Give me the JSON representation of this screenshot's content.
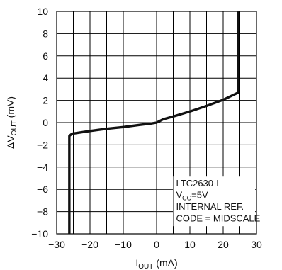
{
  "chart_data": {
    "type": "line",
    "xlabel": {
      "main": "I",
      "sub": "OUT",
      "unit": " (mA)"
    },
    "ylabel": {
      "delta": "ΔV",
      "sub": "OUT",
      "unit": " (mV)"
    },
    "xlim": [
      -30,
      30
    ],
    "ylim": [
      -10,
      10
    ],
    "x_ticks": [
      -30,
      -20,
      -10,
      0,
      10,
      20,
      30
    ],
    "y_ticks": [
      -10,
      -8,
      -6,
      -4,
      -2,
      0,
      2,
      4,
      6,
      8,
      10
    ],
    "x_tick_labels": [
      "−30",
      "−20",
      "−10",
      "0",
      "10",
      "20",
      "30"
    ],
    "y_tick_labels": [
      "−10",
      "−8",
      "−6",
      "−4",
      "−2",
      "0",
      "2",
      "4",
      "6",
      "8",
      "10"
    ],
    "grid": true,
    "grid_x_step": 5,
    "grid_y_step": 2,
    "series": [
      {
        "x": [
          -26.2,
          -26.2,
          -25.4,
          -20,
          -15,
          -10,
          -5,
          -2,
          0,
          2,
          5,
          10,
          15,
          20,
          24.5,
          24.5
        ],
        "y": [
          -10.2,
          -1.2,
          -1.0,
          -0.75,
          -0.55,
          -0.4,
          -0.2,
          -0.1,
          0.0,
          0.3,
          0.55,
          1.0,
          1.5,
          2.05,
          2.7,
          10
        ]
      }
    ],
    "annotation": {
      "line1": "LTC2630-L",
      "line2_main": "V",
      "line2_sub": "CC",
      "line2_rest": "=5V",
      "line3": "INTERNAL REF.",
      "line4": "CODE = MIDSCALE"
    }
  }
}
